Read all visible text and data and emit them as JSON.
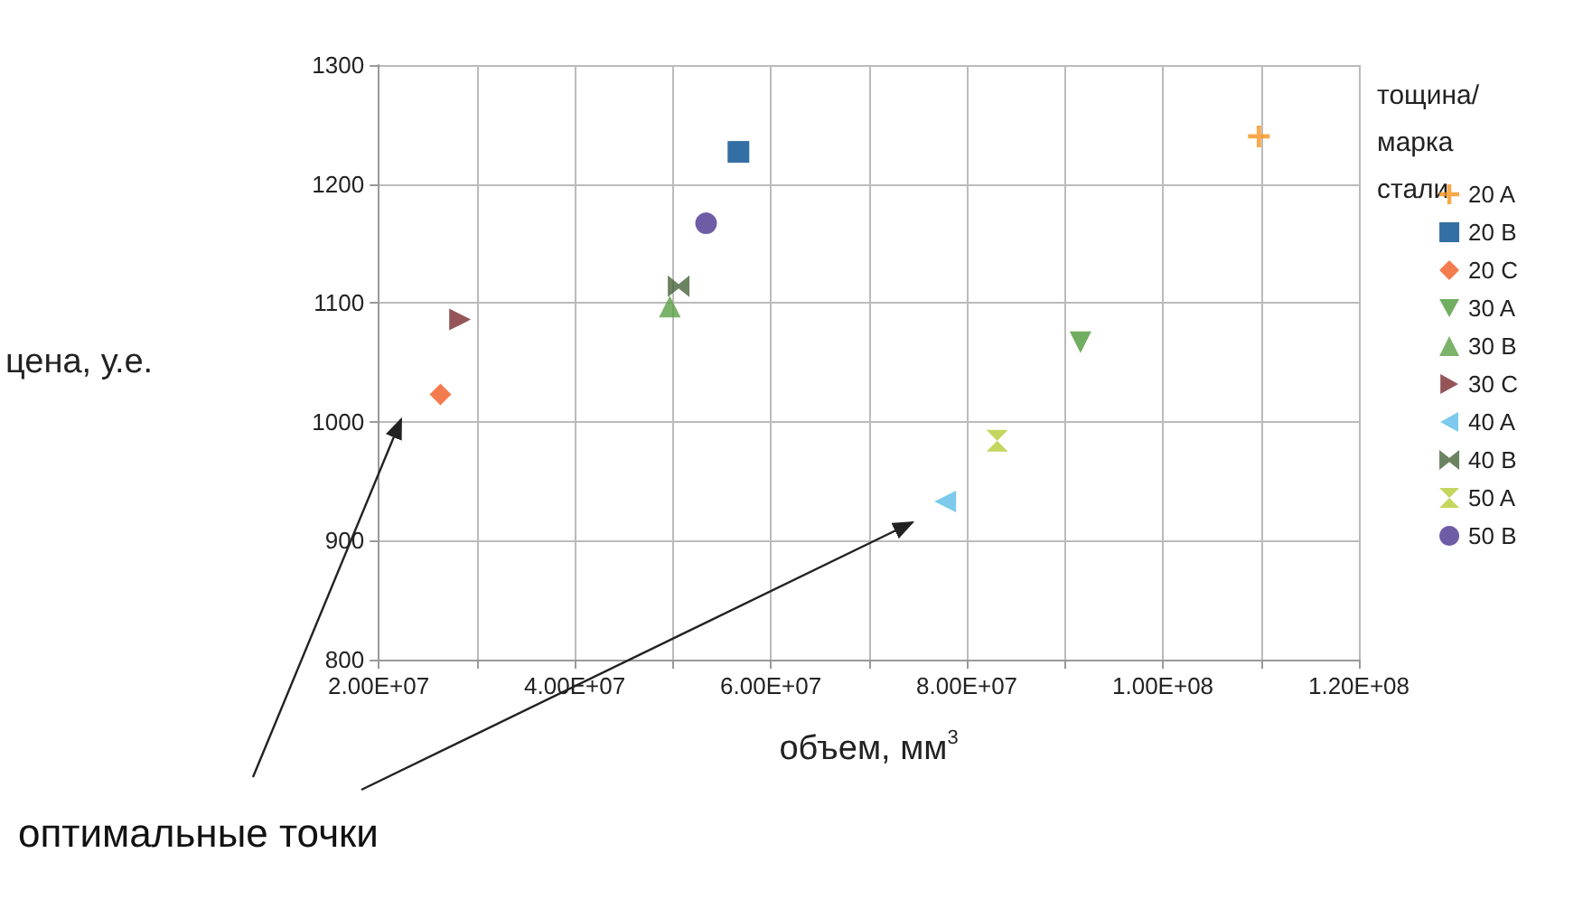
{
  "chart_data": {
    "type": "scatter",
    "xlabel": "объем, мм$^{3}$",
    "ylabel": "цена, у.е.",
    "legend_title": "тощина/ марка стали",
    "legend": "right",
    "grid": true,
    "xlim": [
      20000000,
      120000000
    ],
    "ylim": [
      800,
      1300
    ],
    "xticks": [
      {
        "value": 20000000,
        "label": "2.00E+07"
      },
      {
        "value": 30000000,
        "label": null
      },
      {
        "value": 40000000,
        "label": "4.00E+07"
      },
      {
        "value": 50000000,
        "label": null
      },
      {
        "value": 60000000,
        "label": "6.00E+07"
      },
      {
        "value": 70000000,
        "label": null
      },
      {
        "value": 80000000,
        "label": "8.00E+07"
      },
      {
        "value": 90000000,
        "label": null
      },
      {
        "value": 100000000,
        "label": "1.00E+08"
      },
      {
        "value": 110000000,
        "label": null
      },
      {
        "value": 120000000,
        "label": "1.20E+08"
      }
    ],
    "yticks": [
      800,
      900,
      1000,
      1100,
      1200,
      1300
    ],
    "annotations": [
      "оптимальные точки"
    ],
    "series": [
      {
        "name": "20 A",
        "color": "#f7941d",
        "marker": "cross",
        "x": [
          109800000
        ],
        "values": [
          1240
        ]
      },
      {
        "name": "20 B",
        "color": "#004b8d",
        "marker": "square",
        "x": [
          56700000
        ],
        "values": [
          1227
        ]
      },
      {
        "name": "20 C",
        "color": "#f15a22",
        "marker": "diamond",
        "x": [
          26300000
        ],
        "values": [
          1023
        ]
      },
      {
        "name": "30 A",
        "color": "#4e9a3a",
        "x": [
          91600000
        ],
        "values": [
          1067
        ]
      },
      {
        "name": "30 B",
        "color": "#5aa046",
        "marker": "triangle",
        "x": [
          49700000
        ],
        "values": [
          1097
        ]
      },
      {
        "name": "30 C",
        "color": "#7b2a2e",
        "x": [
          28300000
        ],
        "values": [
          1086
        ]
      },
      {
        "name": "40 A",
        "color": "#5bbde8",
        "x": [
          77800000
        ],
        "values": [
          933
        ]
      },
      {
        "name": "40 B",
        "color": "#46643a",
        "x": [
          50600000
        ],
        "values": [
          1114
        ]
      },
      {
        "name": "50 A",
        "color": "#b5cc34",
        "x": [
          83100000
        ],
        "values": [
          984
        ]
      },
      {
        "name": "50 B",
        "color": "#4a3590",
        "marker": "circle",
        "x": [
          53400000
        ],
        "values": [
          1167
        ]
      }
    ]
  }
}
